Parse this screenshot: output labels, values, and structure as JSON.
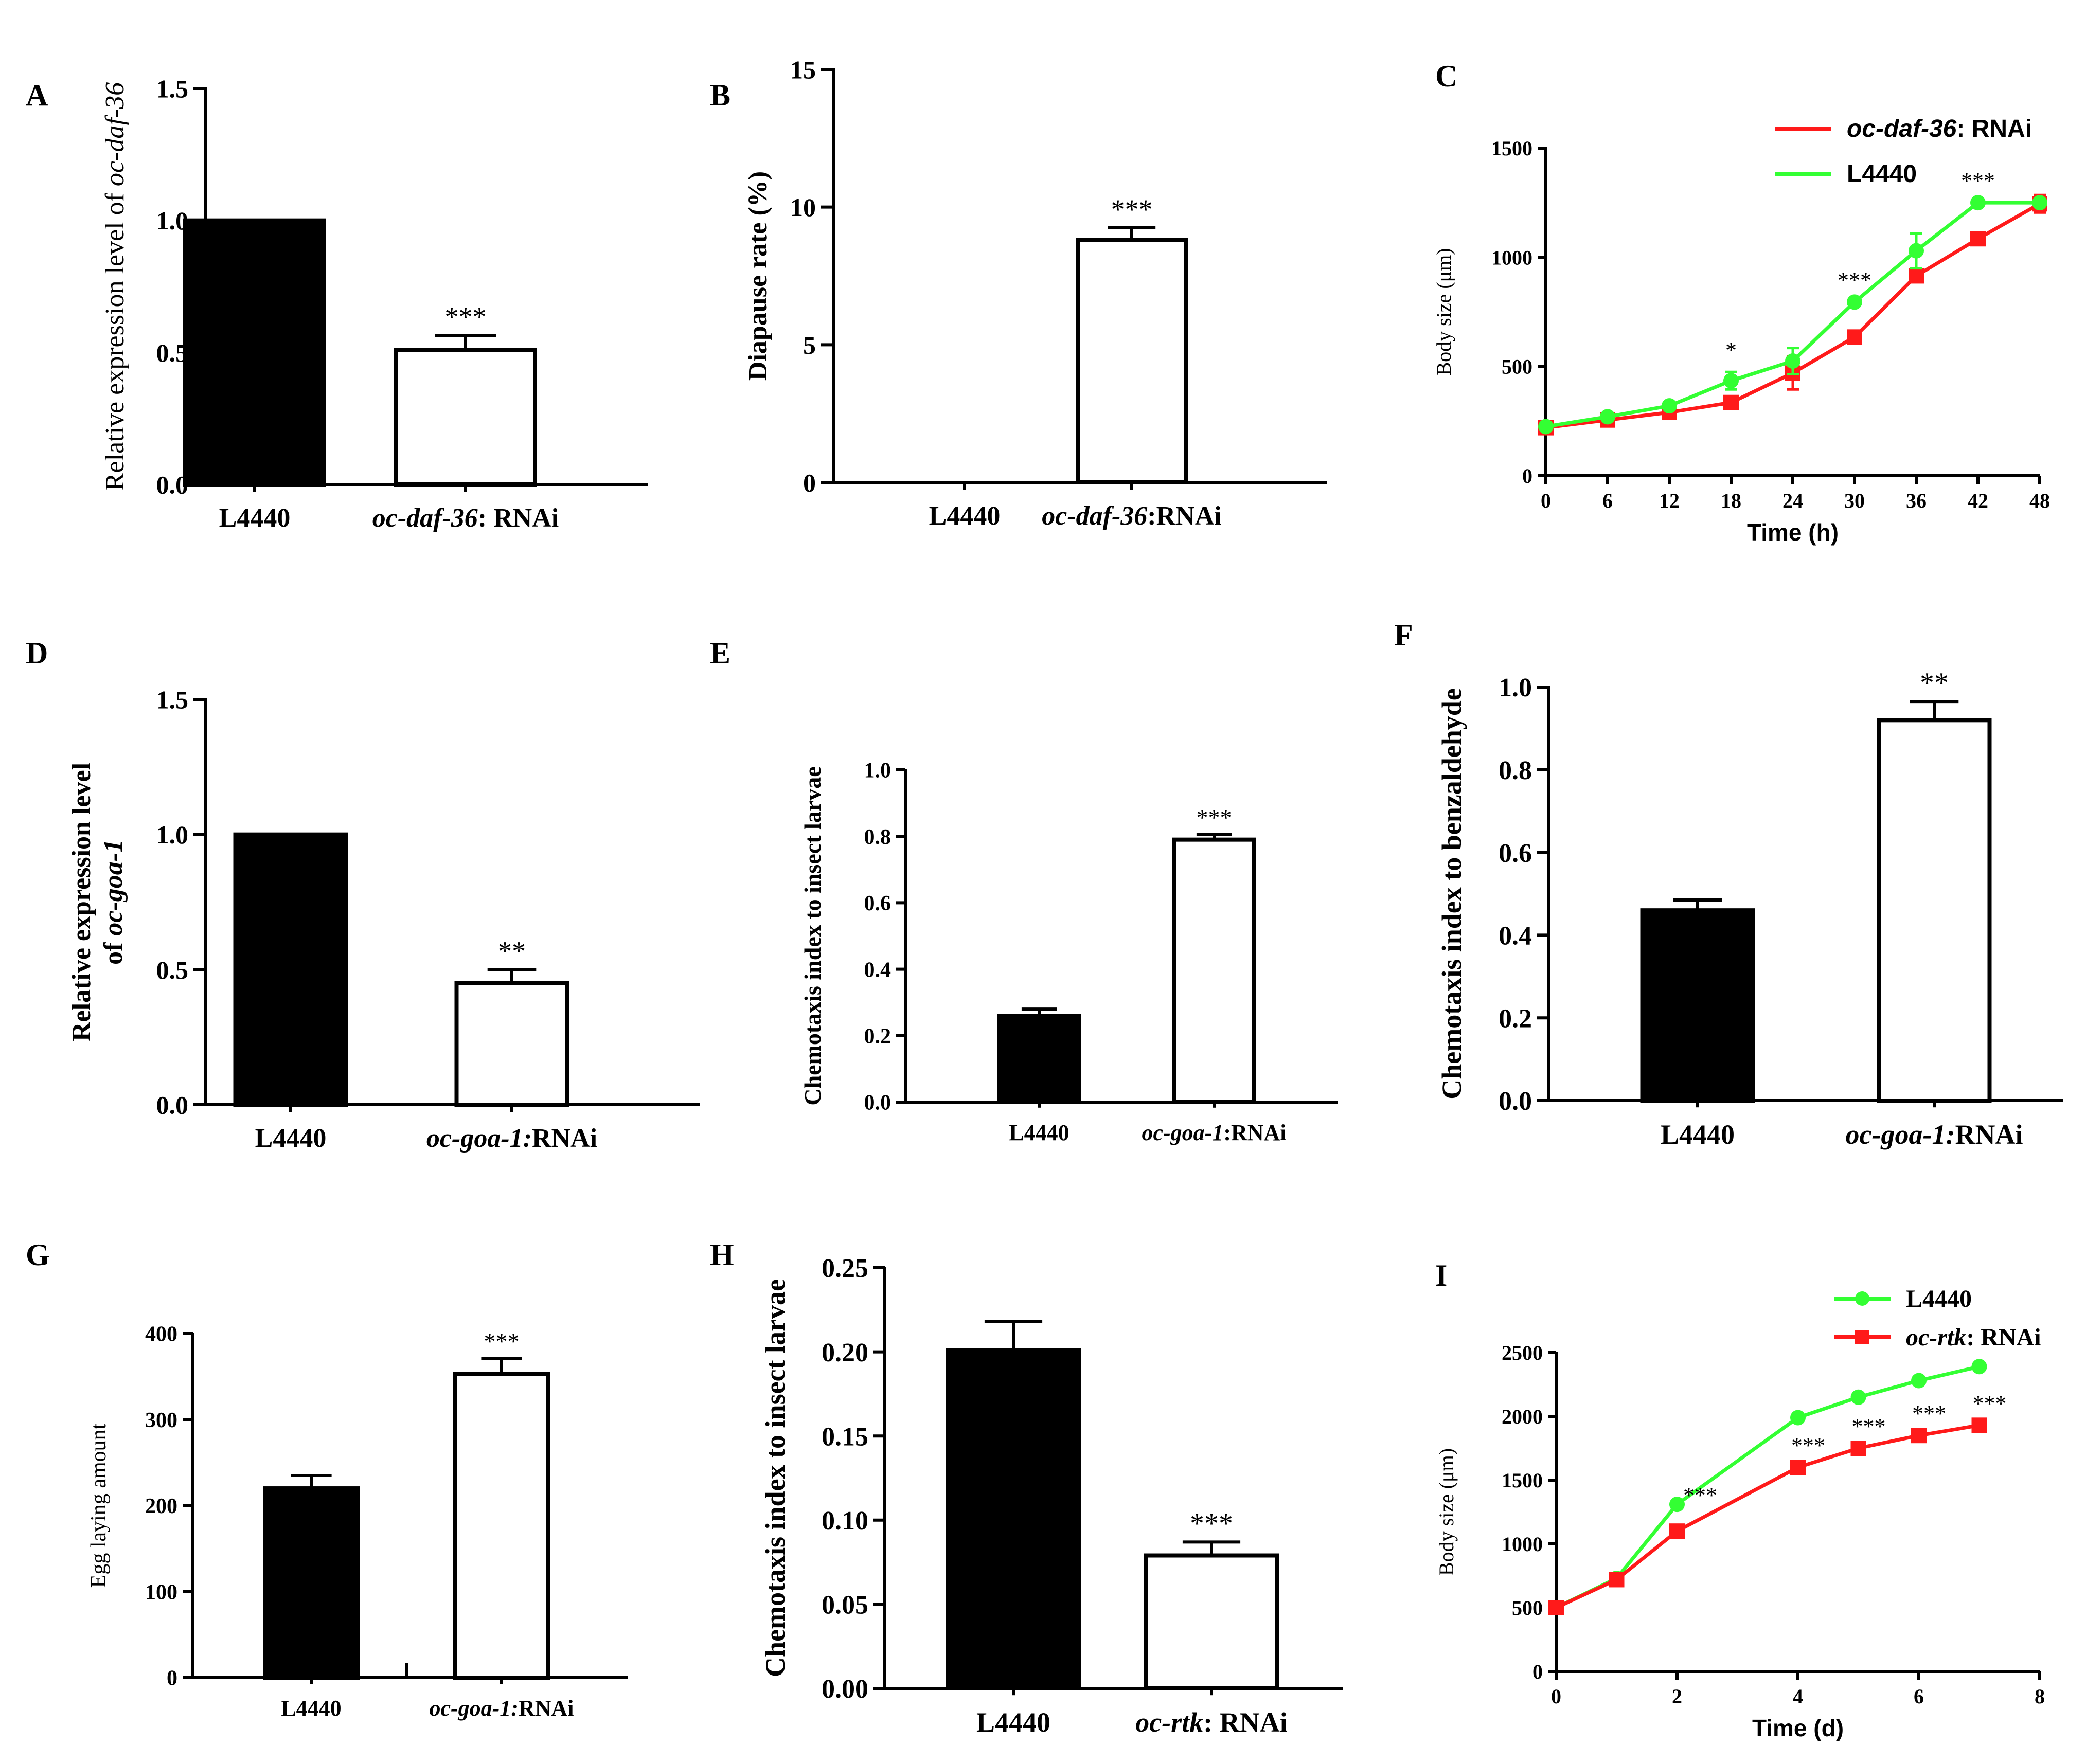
{
  "chart_data": [
    {
      "panel": "A",
      "type": "bar",
      "ylabel": "Relative expression level of ",
      "ylabel_italic": "oc-daf-36",
      "ylim": [
        0,
        1.5
      ],
      "yticks": [
        "0.0",
        "0.5",
        "1.0",
        "1.5"
      ],
      "ytick_values": [
        0,
        0.5,
        1.0,
        1.5
      ],
      "categories": [
        "L4440",
        "oc-daf-36: RNAi"
      ],
      "category_labels": [
        {
          "italic": "",
          "plain": "L4440"
        },
        {
          "italic": "oc-daf-36",
          "plain": ": RNAi"
        }
      ],
      "values": [
        1.0,
        0.51
      ],
      "errors": [
        0,
        0.055
      ],
      "fills": [
        "#000000",
        "#ffffff"
      ],
      "significance": [
        "",
        "***"
      ]
    },
    {
      "panel": "B",
      "type": "bar",
      "ylabel": "Diapause rate (%)",
      "ylabel_italic": "",
      "ylim": [
        0,
        15
      ],
      "yticks": [
        "0",
        "5",
        "10",
        "15"
      ],
      "ytick_values": [
        0,
        5,
        10,
        15
      ],
      "categories": [
        "L4440",
        "oc-daf-36:RNAi"
      ],
      "category_labels": [
        {
          "italic": "",
          "plain": "L4440"
        },
        {
          "italic": "oc-daf-36",
          "plain": ":RNAi"
        }
      ],
      "values": [
        0,
        8.8
      ],
      "errors": [
        0,
        0.45
      ],
      "fills": [
        "#000000",
        "#ffffff"
      ],
      "significance": [
        "",
        "***"
      ]
    },
    {
      "panel": "C",
      "type": "line",
      "xlabel": "Time (h)",
      "ylabel": "Body size (μm)",
      "xlim": [
        0,
        48
      ],
      "ylim": [
        0,
        1500
      ],
      "xticks": [
        "0",
        "6",
        "12",
        "18",
        "24",
        "30",
        "36",
        "42",
        "48"
      ],
      "xtick_values": [
        0,
        6,
        12,
        18,
        24,
        30,
        36,
        42,
        48
      ],
      "yticks": [
        "0",
        "500",
        "1000",
        "1500"
      ],
      "ytick_values": [
        0,
        500,
        1000,
        1500
      ],
      "x": [
        0,
        6,
        12,
        18,
        24,
        30,
        36,
        42,
        48
      ],
      "series": [
        {
          "name": "oc-daf-36: RNAi",
          "name_italic": "oc-daf-36",
          "name_plain": ": RNAi",
          "color": "#ff1a1a",
          "marker": "square",
          "values": [
            220,
            255,
            290,
            335,
            470,
            635,
            915,
            1085,
            1245
          ],
          "errors": [
            0,
            0,
            0,
            20,
            75,
            0,
            25,
            0,
            40
          ]
        },
        {
          "name": "L4440",
          "name_italic": "",
          "name_plain": "L4440",
          "color": "#33ff33",
          "marker": "circle",
          "values": [
            225,
            270,
            320,
            435,
            525,
            795,
            1030,
            1250,
            1250
          ],
          "errors": [
            0,
            0,
            0,
            40,
            60,
            0,
            80,
            0,
            0
          ]
        }
      ],
      "annotations": [
        {
          "x": 18,
          "text": "*"
        },
        {
          "x": 30,
          "text": "***"
        },
        {
          "x": 42,
          "text": "***"
        }
      ],
      "legend_position": "top-right"
    },
    {
      "panel": "D",
      "type": "bar",
      "ylabel": "Relative expression level",
      "ylabel2_prefix": "of ",
      "ylabel2_italic": "oc-goa-1",
      "ylim": [
        0,
        1.5
      ],
      "yticks": [
        "0.0",
        "0.5",
        "1.0",
        "1.5"
      ],
      "ytick_values": [
        0,
        0.5,
        1.0,
        1.5
      ],
      "categories": [
        "L4440",
        "oc-goa-1:RNAi"
      ],
      "category_labels": [
        {
          "italic": "",
          "plain": "L4440"
        },
        {
          "italic": "oc-goa-1:",
          "plain": "RNAi"
        }
      ],
      "values": [
        1.0,
        0.45
      ],
      "errors": [
        0,
        0.05
      ],
      "fills": [
        "#000000",
        "#ffffff"
      ],
      "significance": [
        "",
        "**"
      ]
    },
    {
      "panel": "E",
      "type": "bar",
      "ylabel": "Chemotaxis index to insect larvae",
      "ylabel_italic": "",
      "ylim": [
        0,
        1.0
      ],
      "yticks": [
        "0.0",
        "0.2",
        "0.4",
        "0.6",
        "0.8",
        "1.0"
      ],
      "ytick_values": [
        0,
        0.2,
        0.4,
        0.6,
        0.8,
        1.0
      ],
      "categories": [
        "L4440",
        "oc-goa-1:RNAi"
      ],
      "category_labels": [
        {
          "italic": "",
          "plain": "L4440"
        },
        {
          "italic": "oc-goa-1",
          "plain": ":RNAi"
        }
      ],
      "values": [
        0.26,
        0.79
      ],
      "errors": [
        0.02,
        0.015
      ],
      "fills": [
        "#000000",
        "#ffffff"
      ],
      "significance": [
        "",
        "***"
      ]
    },
    {
      "panel": "F",
      "type": "bar",
      "ylabel": "Chemotaxis index to benzaldehyde",
      "ylabel_italic": "",
      "ylim": [
        0,
        1.0
      ],
      "yticks": [
        "0.0",
        "0.2",
        "0.4",
        "0.6",
        "0.8",
        "1.0"
      ],
      "ytick_values": [
        0,
        0.2,
        0.4,
        0.6,
        0.8,
        1.0
      ],
      "categories": [
        "L4440",
        "oc-goa-1:RNAi"
      ],
      "category_labels": [
        {
          "italic": "",
          "plain": "L4440"
        },
        {
          "italic": "oc-goa-1:",
          "plain": "RNAi"
        }
      ],
      "values": [
        0.46,
        0.92
      ],
      "errors": [
        0.025,
        0.045
      ],
      "fills": [
        "#000000",
        "#ffffff"
      ],
      "significance": [
        "",
        "**"
      ]
    },
    {
      "panel": "G",
      "type": "bar",
      "ylabel": "Egg laying amount",
      "ylabel_italic": "",
      "ylim": [
        0,
        400
      ],
      "yticks": [
        "0",
        "100",
        "200",
        "300",
        "400"
      ],
      "ytick_values": [
        0,
        100,
        200,
        300,
        400
      ],
      "categories": [
        "L4440",
        "oc-goa-1:RNAi"
      ],
      "category_labels": [
        {
          "italic": "",
          "plain": "L4440"
        },
        {
          "italic": "oc-goa-1:",
          "plain": "RNAi"
        }
      ],
      "values": [
        220,
        353
      ],
      "errors": [
        15,
        18
      ],
      "fills": [
        "#000000",
        "#ffffff"
      ],
      "significance": [
        "",
        "***"
      ]
    },
    {
      "panel": "H",
      "type": "bar",
      "ylabel": "Chemotaxis index  to insect larvae",
      "ylabel_italic": "",
      "ylim": [
        0,
        0.25
      ],
      "yticks": [
        "0.00",
        "0.05",
        "0.10",
        "0.15",
        "0.20",
        "0.25"
      ],
      "ytick_values": [
        0,
        0.05,
        0.1,
        0.15,
        0.2,
        0.25
      ],
      "categories": [
        "L4440",
        "oc-rtk: RNAi"
      ],
      "category_labels": [
        {
          "italic": "",
          "plain": "L4440"
        },
        {
          "italic": "oc-rtk",
          "plain": ": RNAi"
        }
      ],
      "values": [
        0.201,
        0.079
      ],
      "errors": [
        0.017,
        0.008
      ],
      "fills": [
        "#000000",
        "#ffffff"
      ],
      "significance": [
        "",
        "***"
      ]
    },
    {
      "panel": "I",
      "type": "line",
      "xlabel": "Time (d)",
      "ylabel": "Body size (μm)",
      "xlim": [
        0,
        8
      ],
      "ylim": [
        0,
        2500
      ],
      "xticks": [
        "0",
        "2",
        "4",
        "6",
        "8"
      ],
      "xtick_values": [
        0,
        2,
        4,
        6,
        8
      ],
      "yticks": [
        "0",
        "500",
        "1000",
        "1500",
        "2000",
        "2500"
      ],
      "ytick_values": [
        0,
        500,
        1000,
        1500,
        2000,
        2500
      ],
      "x": [
        0,
        1,
        2,
        4,
        5,
        6,
        7
      ],
      "series": [
        {
          "name": "L4440",
          "name_italic": "",
          "name_plain": "L4440",
          "color": "#33ff33",
          "marker": "circle",
          "values": [
            500,
            730,
            1310,
            1990,
            2150,
            2280,
            2390
          ],
          "errors": [
            0,
            0,
            0,
            0,
            0,
            0,
            0
          ]
        },
        {
          "name": "oc-rtk: RNAi",
          "name_italic": "oc-rtk",
          "name_plain": ": RNAi",
          "color": "#ff1a1a",
          "marker": "square",
          "values": [
            500,
            720,
            1100,
            1600,
            1750,
            1850,
            1930
          ],
          "errors": [
            0,
            0,
            0,
            0,
            0,
            0,
            0
          ]
        }
      ],
      "annotations": [
        {
          "x": 2,
          "text": "***"
        },
        {
          "x": 4,
          "text": "***"
        },
        {
          "x": 5,
          "text": "***"
        },
        {
          "x": 6,
          "text": "***"
        },
        {
          "x": 7,
          "text": "***"
        }
      ],
      "legend_position": "top-right"
    }
  ]
}
